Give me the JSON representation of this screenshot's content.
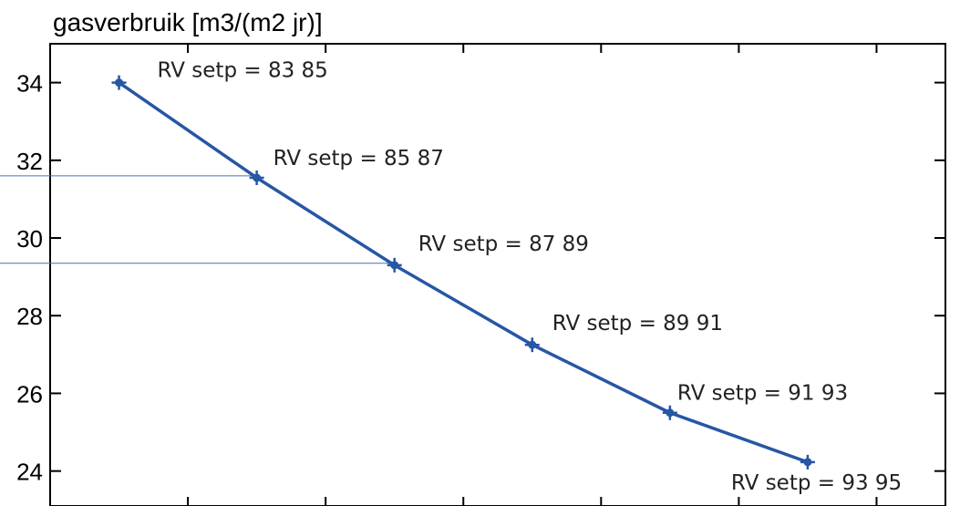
{
  "chart_data": {
    "type": "line",
    "ylabel": "gasverbruik [m3/(m2 jr)]",
    "ylim": [
      23.1,
      35.0
    ],
    "y_ticks": [
      24,
      26,
      28,
      30,
      32,
      34
    ],
    "x_ticks": [
      0.5,
      1.5,
      2.5,
      3.5,
      4.5,
      5.5
    ],
    "xlim": [
      -0.5,
      6.0
    ],
    "grid": false,
    "series": [
      {
        "color": "#2756a5",
        "marker": "plus",
        "points": [
          {
            "x": 0,
            "y": 34.0,
            "label": "RV setp = 83 85"
          },
          {
            "x": 1,
            "y": 31.55,
            "label": "RV setp = 85 87"
          },
          {
            "x": 2,
            "y": 29.3,
            "label": "RV setp = 87 89"
          },
          {
            "x": 3,
            "y": 27.25,
            "label": "RV setp = 89 91"
          },
          {
            "x": 4,
            "y": 25.5,
            "label": "RV setp = 91 93"
          },
          {
            "x": 5,
            "y": 24.23,
            "label": "RV setp = 93 95"
          }
        ]
      }
    ],
    "reference_lines": [
      {
        "y": 31.6,
        "x_end": 1,
        "color": "#4a70b0"
      },
      {
        "y": 29.35,
        "x_end": 2,
        "color": "#4a70b0"
      }
    ]
  }
}
